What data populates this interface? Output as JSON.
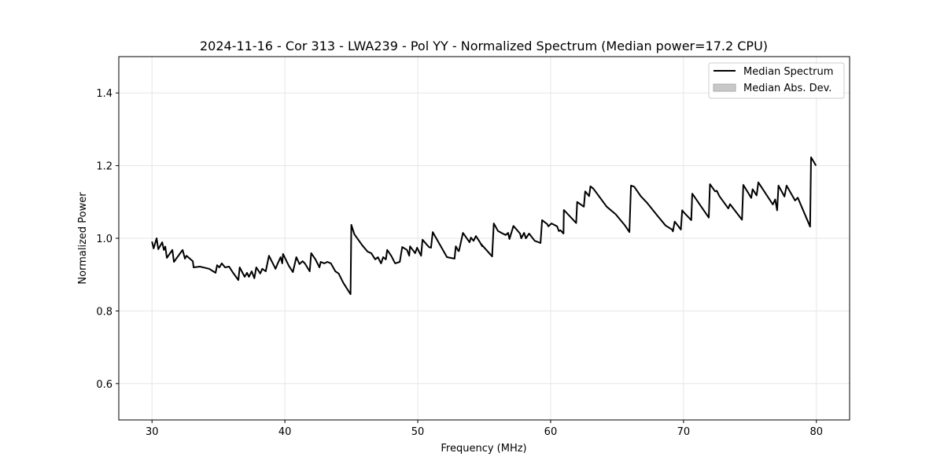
{
  "chart_data": {
    "type": "line",
    "title": "2024-11-16 - Cor 313 - LWA239 - Pol YY - Normalized Spectrum (Median power=17.2 CPU)",
    "xlabel": "Frequency (MHz)",
    "ylabel": "Normalized Power",
    "xlim": [
      27.5,
      82.5
    ],
    "ylim": [
      0.5,
      1.5
    ],
    "xticks": [
      30,
      40,
      50,
      60,
      70,
      80
    ],
    "xtick_labels": [
      "30",
      "40",
      "50",
      "60",
      "70",
      "80"
    ],
    "yticks": [
      0.6,
      0.8,
      1.0,
      1.2,
      1.4
    ],
    "ytick_labels": [
      "0.6",
      "0.8",
      "1.0",
      "1.2",
      "1.4"
    ],
    "grid": true,
    "legend_position": "top-right",
    "legend": [
      "Median Spectrum",
      "Median Abs. Dev."
    ],
    "colors": {
      "line": "#000000",
      "band": "#c8c8c8",
      "grid": "#e6e6e6"
    },
    "series": [
      {
        "name": "Median Spectrum",
        "x": [
          30.0,
          30.12,
          30.35,
          30.47,
          30.77,
          30.89,
          31.0,
          31.12,
          31.53,
          31.65,
          32.3,
          32.48,
          32.6,
          33.07,
          33.13,
          33.6,
          34.3,
          34.78,
          34.9,
          35.07,
          35.25,
          35.5,
          35.8,
          36.1,
          36.5,
          36.6,
          36.97,
          37.15,
          37.3,
          37.5,
          37.7,
          37.85,
          38.15,
          38.3,
          38.56,
          38.8,
          39.3,
          39.44,
          39.68,
          39.8,
          39.86,
          40.3,
          40.6,
          40.86,
          41.1,
          41.33,
          41.5,
          41.87,
          41.98,
          42.3,
          42.6,
          42.7,
          42.97,
          43.2,
          43.46,
          43.8,
          44.05,
          44.4,
          44.94,
          45.0,
          45.23,
          45.82,
          46.23,
          46.5,
          46.8,
          47.0,
          47.24,
          47.4,
          47.6,
          47.7,
          48.0,
          48.3,
          48.65,
          48.83,
          49.19,
          49.36,
          49.42,
          49.8,
          49.95,
          50.25,
          50.36,
          50.84,
          51.0,
          51.13,
          52.2,
          52.77,
          52.86,
          53.06,
          53.1,
          53.4,
          53.9,
          54.0,
          54.2,
          54.38,
          54.68,
          54.86,
          54.8,
          55.6,
          55.72,
          56.04,
          56.4,
          56.62,
          56.8,
          56.9,
          57.2,
          57.7,
          57.79,
          58.0,
          58.14,
          58.38,
          58.8,
          59.24,
          59.36,
          59.75,
          59.83,
          60.06,
          60.49,
          60.62,
          60.74,
          60.97,
          61.0,
          61.92,
          62.0,
          62.5,
          62.6,
          62.9,
          63.0,
          63.23,
          64.22,
          64.9,
          65.6,
          65.93,
          66.05,
          66.29,
          66.78,
          67.27,
          68.06,
          68.65,
          69.14,
          69.2,
          69.34,
          69.8,
          69.9,
          70.03,
          70.58,
          70.66,
          71.3,
          71.9,
          71.99,
          72.38,
          72.5,
          72.7,
          73.37,
          73.5,
          74.4,
          74.5,
          75.1,
          75.2,
          75.5,
          75.63,
          76.72,
          76.9,
          77.05,
          77.15,
          77.6,
          77.76,
          78.4,
          78.6,
          79.53,
          79.6,
          79.97
        ],
        "y": [
          0.991,
          0.972,
          1.0,
          0.97,
          0.989,
          0.968,
          0.977,
          0.946,
          0.968,
          0.935,
          0.968,
          0.944,
          0.952,
          0.937,
          0.92,
          0.922,
          0.916,
          0.905,
          0.926,
          0.92,
          0.931,
          0.92,
          0.922,
          0.905,
          0.885,
          0.92,
          0.894,
          0.905,
          0.894,
          0.909,
          0.89,
          0.92,
          0.903,
          0.916,
          0.909,
          0.952,
          0.916,
          0.929,
          0.948,
          0.931,
          0.957,
          0.924,
          0.907,
          0.948,
          0.929,
          0.937,
          0.931,
          0.909,
          0.959,
          0.942,
          0.92,
          0.935,
          0.931,
          0.935,
          0.931,
          0.909,
          0.903,
          0.877,
          0.846,
          1.037,
          1.011,
          0.981,
          0.963,
          0.959,
          0.942,
          0.948,
          0.931,
          0.948,
          0.942,
          0.968,
          0.952,
          0.931,
          0.935,
          0.976,
          0.968,
          0.952,
          0.978,
          0.959,
          0.974,
          0.952,
          0.996,
          0.976,
          0.974,
          1.017,
          0.948,
          0.944,
          0.978,
          0.965,
          0.965,
          1.015,
          0.989,
          1.002,
          0.993,
          1.006,
          0.989,
          0.978,
          0.983,
          0.95,
          1.041,
          1.02,
          1.013,
          1.009,
          1.015,
          0.998,
          1.034,
          1.013,
          1.0,
          1.015,
          1.0,
          1.013,
          0.993,
          0.987,
          1.05,
          1.039,
          1.033,
          1.041,
          1.033,
          1.02,
          1.022,
          1.013,
          1.078,
          1.042,
          1.1,
          1.087,
          1.129,
          1.116,
          1.143,
          1.136,
          1.087,
          1.066,
          1.035,
          1.017,
          1.145,
          1.142,
          1.116,
          1.097,
          1.061,
          1.035,
          1.024,
          1.019,
          1.046,
          1.024,
          1.077,
          1.071,
          1.05,
          1.123,
          1.089,
          1.057,
          1.149,
          1.129,
          1.131,
          1.116,
          1.082,
          1.094,
          1.051,
          1.147,
          1.111,
          1.135,
          1.118,
          1.154,
          1.093,
          1.107,
          1.077,
          1.145,
          1.115,
          1.145,
          1.104,
          1.112,
          1.032,
          1.223,
          1.2
        ]
      }
    ]
  }
}
